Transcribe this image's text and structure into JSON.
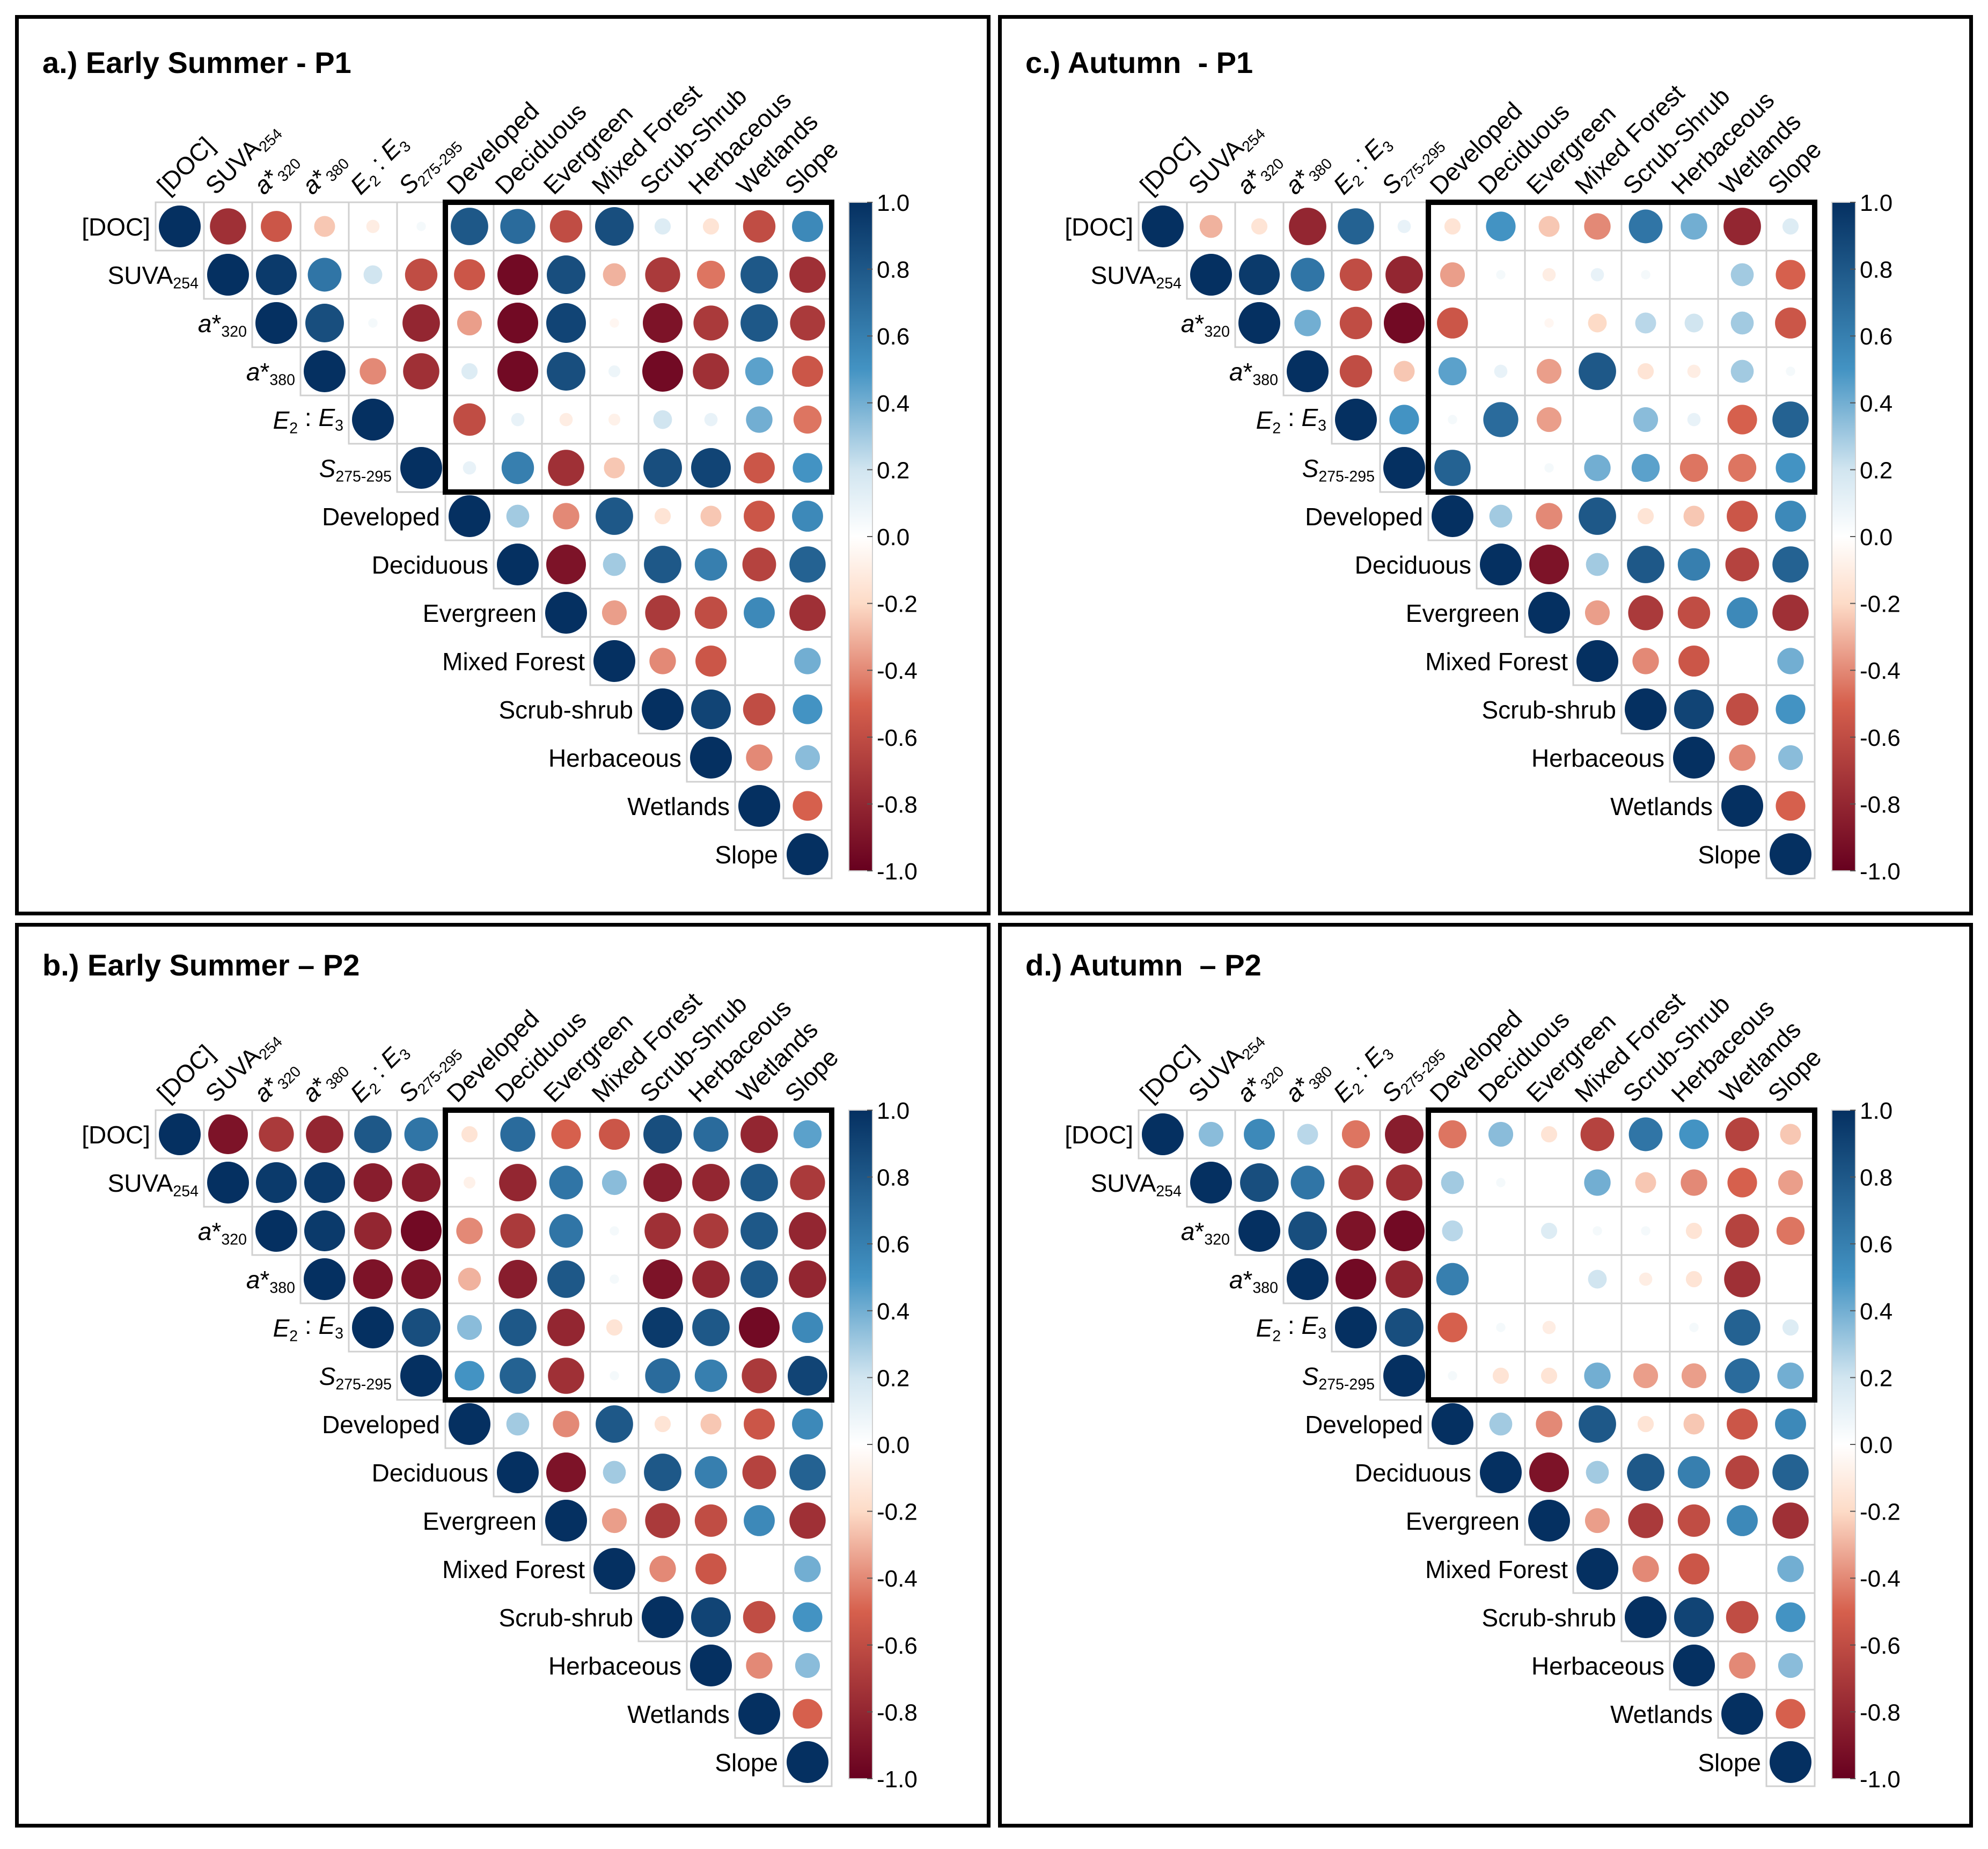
{
  "colors": {
    "neg_strong": "#67001F",
    "neg_mid": "#D6604D",
    "neg_light": "#FDDBC7",
    "neutral": "#FFFFFF",
    "pos_light": "#D1E5F0",
    "pos_mid": "#4393C3",
    "pos_strong": "#053061",
    "grid": "#D0D0D0",
    "frame": "#000000"
  },
  "colorbar": {
    "ticks": [
      "1.0",
      "0.8",
      "0.6",
      "0.4",
      "0.2",
      "0.0",
      "-0.2",
      "-0.4",
      "-0.6",
      "-0.8",
      "-1.0"
    ]
  },
  "chart_data": [
    {
      "type": "heatmap",
      "panel": "a",
      "title": "a.) Early Summer - P1",
      "variables": [
        "[DOC]",
        "SUVA254",
        "a*320",
        "a*380",
        "E2 : E3",
        "S275-295",
        "Developed",
        "Deciduous",
        "Evergreen",
        "Mixed Forest",
        "Scrub-Shrub",
        "Herbaceous",
        "Wetlands",
        "Slope"
      ],
      "row_labels": [
        "[DOC]",
        "SUVA254",
        "a*320",
        "a*380",
        "E2 : E3",
        "S275-295",
        "Developed",
        "Deciduous",
        "Evergreen",
        "Mixed Forest",
        "Scrub-shrub",
        "Herbaceous",
        "Wetlands",
        "Slope"
      ],
      "color_range": [
        -1,
        1
      ],
      "highlight_box": "rows [DOC]–S275-295 × cols Developed–Slope",
      "upper_triangle": [
        [
          1.0,
          -0.75,
          -0.55,
          -0.25,
          -0.1,
          0.05,
          0.8,
          0.7,
          -0.6,
          0.85,
          0.15,
          -0.15,
          -0.6,
          0.55
        ],
        [
          1.0,
          0.95,
          0.65,
          0.2,
          -0.6,
          -0.55,
          -0.95,
          0.85,
          -0.3,
          -0.7,
          -0.45,
          0.8,
          -0.75
        ],
        [
          1.0,
          0.85,
          0.05,
          -0.8,
          -0.35,
          -0.95,
          0.9,
          -0.05,
          -0.9,
          -0.7,
          0.8,
          -0.7
        ],
        [
          1.0,
          -0.4,
          -0.75,
          0.15,
          -0.95,
          0.85,
          0.08,
          -0.95,
          -0.75,
          0.45,
          -0.55
        ],
        [
          1.0,
          0.0,
          -0.6,
          0.1,
          -0.1,
          -0.08,
          0.2,
          0.1,
          0.4,
          -0.45
        ],
        [
          1.0,
          0.1,
          0.6,
          -0.75,
          -0.25,
          0.85,
          0.9,
          -0.55,
          0.5
        ],
        [
          1.0,
          0.3,
          -0.4,
          0.8,
          -0.15,
          -0.25,
          -0.55,
          0.55
        ],
        [
          1.0,
          -0.9,
          0.3,
          0.8,
          0.6,
          -0.65,
          0.75
        ],
        [
          1.0,
          -0.35,
          -0.7,
          -0.6,
          0.55,
          -0.75
        ],
        [
          1.0,
          -0.4,
          -0.55,
          0.0,
          0.4
        ],
        [
          1.0,
          0.9,
          -0.6,
          0.5
        ],
        [
          1.0,
          -0.4,
          0.35
        ],
        [
          1.0,
          -0.5
        ],
        [
          1.0
        ]
      ]
    },
    {
      "type": "heatmap",
      "panel": "b",
      "title": "b.) Early Summer – P2",
      "variables": [
        "[DOC]",
        "SUVA254",
        "a*320",
        "a*380",
        "E2 : E3",
        "S275-295",
        "Developed",
        "Deciduous",
        "Evergreen",
        "Mixed Forest",
        "Scrub-Shrub",
        "Herbaceous",
        "Wetlands",
        "Slope"
      ],
      "row_labels": [
        "[DOC]",
        "SUVA254",
        "a*320",
        "a*380",
        "E2 : E3",
        "S275-295",
        "Developed",
        "Deciduous",
        "Evergreen",
        "Mixed Forest",
        "Scrub-shrub",
        "Herbaceous",
        "Wetlands",
        "Slope"
      ],
      "color_range": [
        -1,
        1
      ],
      "highlight_box": "rows [DOC]–S275-295 × cols Developed–Slope",
      "upper_triangle": [
        [
          1.0,
          -0.9,
          -0.7,
          -0.8,
          0.8,
          0.65,
          -0.15,
          0.7,
          -0.5,
          -0.55,
          0.85,
          0.7,
          -0.8,
          0.45
        ],
        [
          1.0,
          0.95,
          0.95,
          -0.85,
          -0.85,
          -0.08,
          -0.8,
          0.65,
          0.35,
          -0.85,
          -0.8,
          0.8,
          -0.7
        ],
        [
          1.0,
          0.95,
          -0.8,
          -0.95,
          -0.4,
          -0.7,
          0.65,
          0.05,
          -0.75,
          -0.7,
          0.8,
          -0.8
        ],
        [
          1.0,
          -0.9,
          -0.9,
          -0.3,
          -0.85,
          0.8,
          0.05,
          -0.9,
          -0.8,
          0.8,
          -0.8
        ],
        [
          1.0,
          0.85,
          0.35,
          0.8,
          -0.8,
          -0.15,
          0.95,
          0.8,
          -0.95,
          0.55
        ],
        [
          1.0,
          0.5,
          0.75,
          -0.75,
          0.05,
          0.7,
          0.6,
          -0.7,
          0.9
        ],
        [
          1.0,
          0.3,
          -0.4,
          0.8,
          -0.15,
          -0.25,
          -0.55,
          0.55
        ],
        [
          1.0,
          -0.9,
          0.3,
          0.8,
          0.6,
          -0.65,
          0.75
        ],
        [
          1.0,
          -0.35,
          -0.7,
          -0.6,
          0.55,
          -0.75
        ],
        [
          1.0,
          -0.4,
          -0.55,
          0.0,
          0.4
        ],
        [
          1.0,
          0.9,
          -0.6,
          0.5
        ],
        [
          1.0,
          -0.4,
          0.35
        ],
        [
          1.0,
          -0.5
        ],
        [
          1.0
        ]
      ]
    },
    {
      "type": "heatmap",
      "panel": "c",
      "title": "c.) Autumn  - P1",
      "variables": [
        "[DOC]",
        "SUVA254",
        "a*320",
        "a*380",
        "E2 : E3",
        "S275-295",
        "Developed",
        "Deciduous",
        "Evergreen",
        "Mixed Forest",
        "Scrub-Shrub",
        "Herbaceous",
        "Wetlands",
        "Slope"
      ],
      "row_labels": [
        "[DOC]",
        "SUVA254",
        "a*320",
        "a*380",
        "E2 : E3",
        "S275-295",
        "Developed",
        "Deciduous",
        "Evergreen",
        "Mixed Forest",
        "Scrub-shrub",
        "Herbaceous",
        "Wetlands",
        "Slope"
      ],
      "color_range": [
        -1,
        1
      ],
      "highlight_box": "rows [DOC]–S275-295 × cols Developed–Slope",
      "upper_triangle": [
        [
          1.0,
          -0.3,
          -0.15,
          -0.8,
          0.75,
          0.1,
          -0.15,
          0.5,
          -0.25,
          -0.4,
          0.65,
          0.4,
          -0.8,
          0.15
        ],
        [
          1.0,
          0.95,
          0.65,
          -0.6,
          -0.8,
          -0.35,
          0.05,
          -0.1,
          0.1,
          0.05,
          0.0,
          0.3,
          -0.5
        ],
        [
          1.0,
          0.4,
          -0.6,
          -0.95,
          -0.55,
          0.0,
          -0.05,
          -0.2,
          0.25,
          0.2,
          0.3,
          -0.55
        ],
        [
          1.0,
          -0.6,
          -0.25,
          0.45,
          0.1,
          -0.35,
          0.8,
          -0.15,
          -0.1,
          0.3,
          0.05
        ],
        [
          1.0,
          0.5,
          0.05,
          0.7,
          -0.35,
          0.0,
          0.35,
          0.1,
          -0.5,
          0.75
        ],
        [
          1.0,
          0.75,
          0.0,
          0.05,
          0.4,
          0.45,
          -0.45,
          -0.45,
          0.5
        ],
        [
          1.0,
          0.3,
          -0.4,
          0.8,
          -0.15,
          -0.25,
          -0.55,
          0.55
        ],
        [
          1.0,
          -0.9,
          0.3,
          0.8,
          0.6,
          -0.65,
          0.75
        ],
        [
          1.0,
          -0.35,
          -0.7,
          -0.6,
          0.55,
          -0.75
        ],
        [
          1.0,
          -0.4,
          -0.55,
          0.0,
          0.4
        ],
        [
          1.0,
          0.9,
          -0.6,
          0.5
        ],
        [
          1.0,
          -0.4,
          0.35
        ],
        [
          1.0,
          -0.5
        ],
        [
          1.0
        ]
      ]
    },
    {
      "type": "heatmap",
      "panel": "d",
      "title": "d.) Autumn  – P2",
      "variables": [
        "[DOC]",
        "SUVA254",
        "a*320",
        "a*380",
        "E2 : E3",
        "S275-295",
        "Developed",
        "Deciduous",
        "Evergreen",
        "Mixed Forest",
        "Scrub-Shrub",
        "Herbaceous",
        "Wetlands",
        "Slope"
      ],
      "row_labels": [
        "[DOC]",
        "SUVA254",
        "a*320",
        "a*380",
        "E2 : E3",
        "S275-295",
        "Developed",
        "Deciduous",
        "Evergreen",
        "Mixed Forest",
        "Scrub-shrub",
        "Herbaceous",
        "Wetlands",
        "Slope"
      ],
      "color_range": [
        -1,
        1
      ],
      "highlight_box": "rows [DOC]–S275-295 × cols Developed–Slope",
      "upper_triangle": [
        [
          1.0,
          0.35,
          0.55,
          0.25,
          -0.45,
          -0.85,
          -0.45,
          0.35,
          -0.15,
          -0.65,
          0.65,
          0.5,
          -0.65,
          -0.25
        ],
        [
          1.0,
          0.85,
          0.65,
          -0.7,
          -0.75,
          0.3,
          0.05,
          0.0,
          0.4,
          -0.25,
          -0.4,
          -0.5,
          -0.35
        ],
        [
          1.0,
          0.85,
          -0.9,
          -0.95,
          0.25,
          0.0,
          0.15,
          0.05,
          0.05,
          -0.15,
          -0.65,
          -0.45
        ],
        [
          1.0,
          -0.95,
          -0.8,
          0.6,
          0.0,
          0.0,
          0.2,
          -0.1,
          -0.15,
          -0.75,
          0.0
        ],
        [
          1.0,
          0.85,
          -0.5,
          0.05,
          -0.1,
          0.0,
          0.0,
          0.05,
          0.75,
          0.15
        ],
        [
          1.0,
          0.05,
          -0.15,
          -0.15,
          0.4,
          -0.35,
          -0.35,
          0.7,
          0.4
        ],
        [
          1.0,
          0.3,
          -0.4,
          0.8,
          -0.15,
          -0.25,
          -0.55,
          0.55
        ],
        [
          1.0,
          -0.9,
          0.3,
          0.8,
          0.6,
          -0.65,
          0.75
        ],
        [
          1.0,
          -0.35,
          -0.7,
          -0.6,
          0.55,
          -0.75
        ],
        [
          1.0,
          -0.4,
          -0.55,
          0.0,
          0.4
        ],
        [
          1.0,
          0.9,
          -0.6,
          0.5
        ],
        [
          1.0,
          -0.4,
          0.35
        ],
        [
          1.0,
          -0.5
        ],
        [
          1.0
        ]
      ]
    }
  ]
}
